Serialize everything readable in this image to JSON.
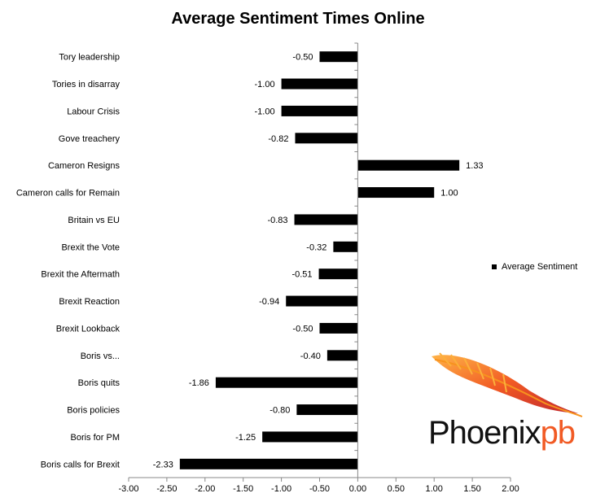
{
  "chart_data": {
    "type": "bar",
    "orientation": "horizontal",
    "title": "Average Sentiment Times Online",
    "categories": [
      "Tory leadership",
      "Tories in disarray",
      "Labour Crisis",
      "Gove treachery",
      "Cameron Resigns",
      "Cameron calls for Remain",
      "Britain vs EU",
      "Brexit the Vote",
      "Brexit the Aftermath",
      "Brexit Reaction",
      "Brexit Lookback",
      "Boris vs...",
      "Boris quits",
      "Boris policies",
      "Boris for PM",
      "Boris calls for Brexit"
    ],
    "series": [
      {
        "name": "Average Sentiment",
        "color": "#000000",
        "values": [
          -0.5,
          -1.0,
          -1.0,
          -0.82,
          1.33,
          1.0,
          -0.83,
          -0.32,
          -0.51,
          -0.94,
          -0.5,
          -0.4,
          -1.86,
          -0.8,
          -1.25,
          -2.33
        ],
        "labels": [
          "-0.50",
          "-1.00",
          "-1.00",
          "-0.82",
          "1.33",
          "1.00",
          "-0.83",
          "-0.32",
          "-0.51",
          "-0.94",
          "-0.50",
          "-0.40",
          "-1.86",
          "-0.80",
          "-1.25",
          "-2.33"
        ]
      }
    ],
    "xlim": [
      -3.0,
      2.0
    ],
    "xticks": [
      -3.0,
      -2.5,
      -2.0,
      -1.5,
      -1.0,
      -0.5,
      0.0,
      0.5,
      1.0,
      1.5,
      2.0
    ],
    "xtick_labels": [
      "-3.00",
      "-2.50",
      "-2.00",
      "-1.50",
      "-1.00",
      "-0.50",
      "0.00",
      "0.50",
      "1.00",
      "1.50",
      "2.00"
    ],
    "grid": false,
    "legend_position": "right",
    "xlabel": "",
    "ylabel": ""
  },
  "legend": {
    "label": "Average Sentiment"
  },
  "logo": {
    "text_dark": "Phoenix",
    "text_accent": "pb",
    "accent_color": "#f15a24"
  }
}
